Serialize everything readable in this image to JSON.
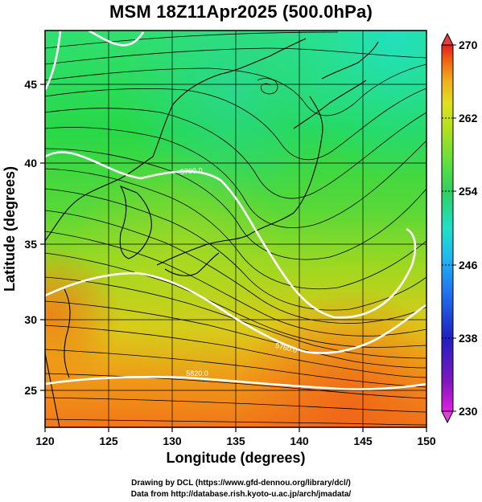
{
  "title": "MSM 18Z11Apr2025 (500.0hPa)",
  "x_axis": {
    "label": "Longitude (degrees)",
    "ticks": [
      "120",
      "125",
      "130",
      "135",
      "140",
      "145",
      "150"
    ]
  },
  "y_axis": {
    "label": "Latitude  (degrees)",
    "ticks": [
      "25",
      "30",
      "35",
      "40",
      "45"
    ]
  },
  "colorbar": {
    "ticks": [
      "270",
      "262",
      "254",
      "246",
      "238",
      "230"
    ],
    "min": 230,
    "max": 270,
    "colors": [
      "#e020e0",
      "#8018c0",
      "#2020c0",
      "#2070f0",
      "#20b8f0",
      "#20e0c8",
      "#30d060",
      "#60e040",
      "#a8e020",
      "#e0e020",
      "#f0b020",
      "#f06010",
      "#e02020"
    ]
  },
  "contour_labels": {
    "c5700": "5700.0",
    "c5760": "5760.0",
    "c5820": "5820.0"
  },
  "credits": {
    "line1": "Drawing by DCL (https://www.gfd-dennou.org/library/dcl/)",
    "line2": "Data from http://database.rish.kyoto-u.ac.jp/arch/jmadata/"
  }
}
